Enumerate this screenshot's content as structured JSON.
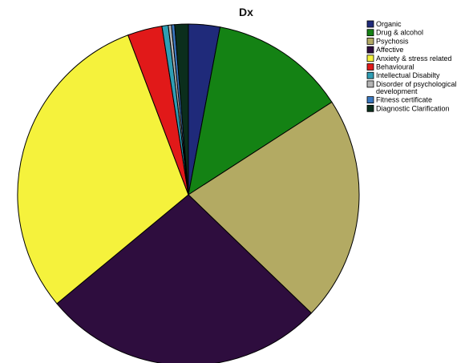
{
  "chart_data": {
    "type": "pie",
    "title": "Dx",
    "legend_position": "top-right",
    "slices": [
      {
        "label": "Organic",
        "value": 3.0,
        "color": "#1f2a7a"
      },
      {
        "label": "Drug & alcohol",
        "value": 13.0,
        "color": "#148214"
      },
      {
        "label": "Psychosis",
        "value": 21.5,
        "color": "#b3aa63"
      },
      {
        "label": "Affective",
        "value": 27.0,
        "color": "#2e0d3e"
      },
      {
        "label": "Anxiety & stress related",
        "value": 30.5,
        "color": "#f5f23c"
      },
      {
        "label": "Behavioural",
        "value": 3.3,
        "color": "#e11919"
      },
      {
        "label": "Intellectual Disabilty",
        "value": 0.6,
        "color": "#2f9db4"
      },
      {
        "label": "Disorder of psychological development",
        "value": 0.3,
        "color": "#b4b4b4"
      },
      {
        "label": "Fitness certificate",
        "value": 0.3,
        "color": "#3a78c0"
      },
      {
        "label": "Diagnostic Clarification",
        "value": 1.3,
        "color": "#0b2e1c"
      }
    ]
  }
}
